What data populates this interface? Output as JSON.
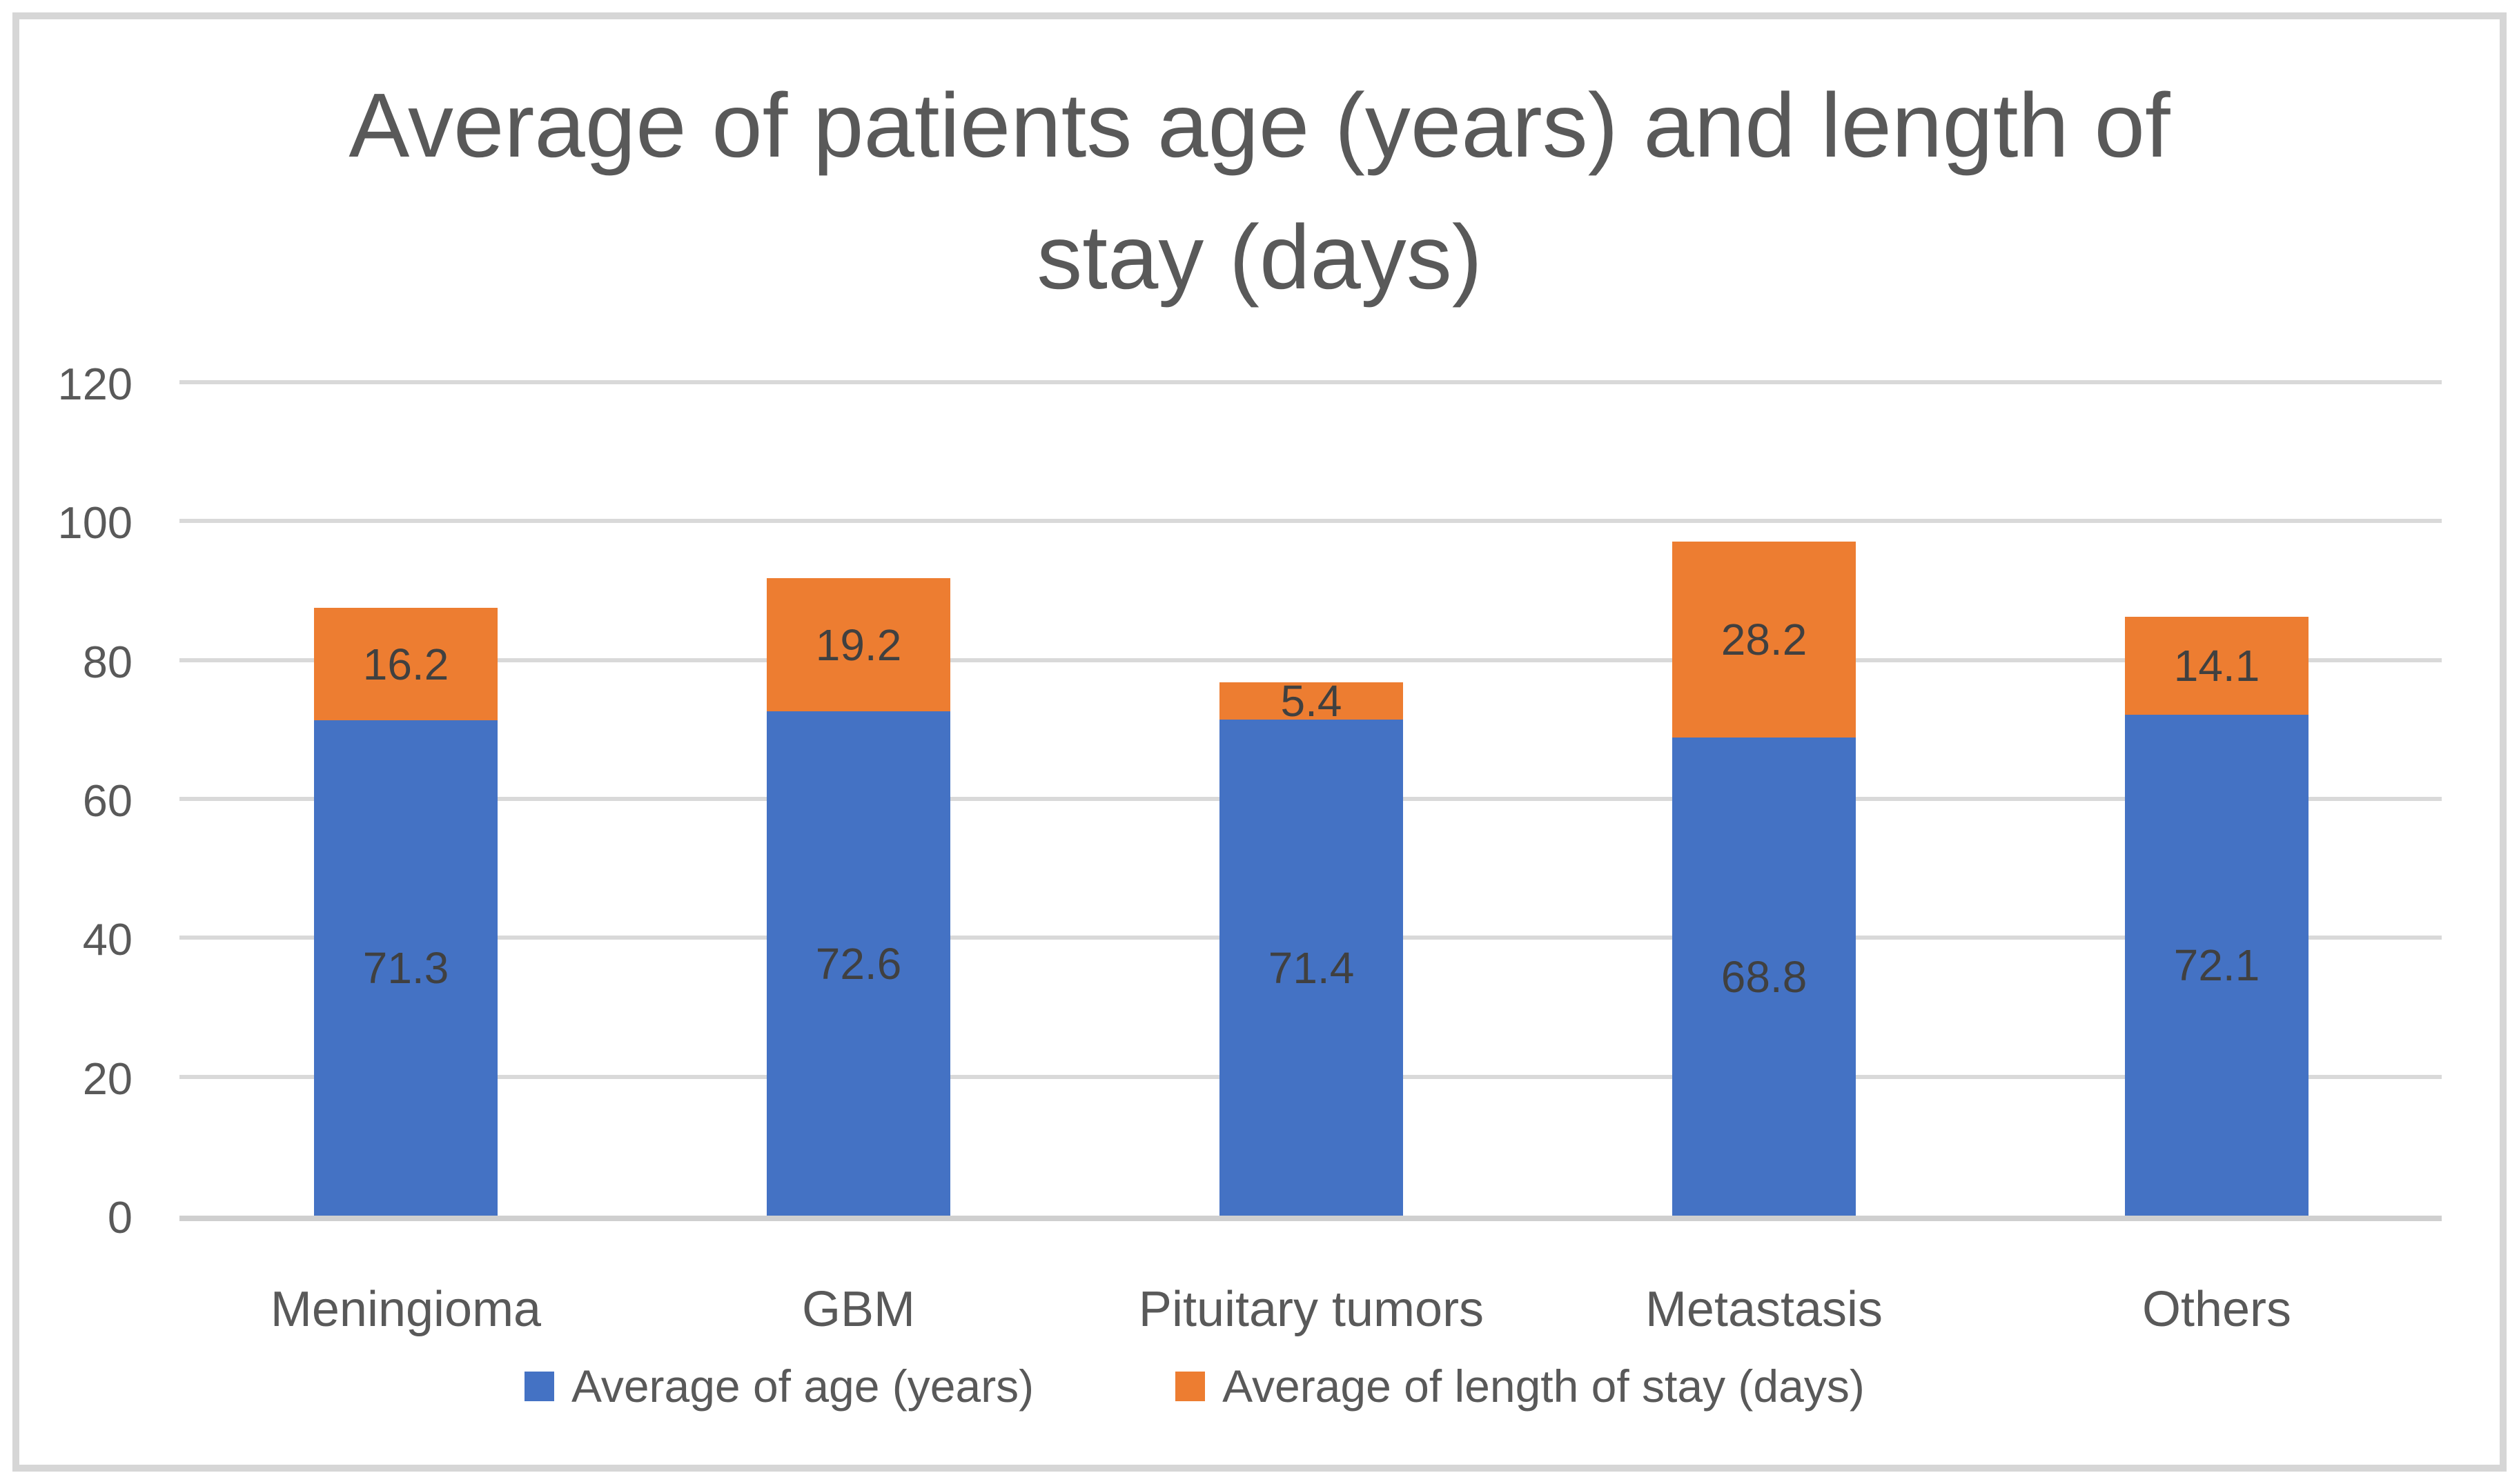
{
  "chart_data": {
    "type": "bar",
    "stacked": true,
    "title": "Average of patients age (years) and length of stay (days)",
    "categories": [
      "Meningioma",
      "GBM",
      "Pituitary tumors",
      "Metastasis",
      "Others"
    ],
    "series": [
      {
        "name": "Average of age (years)",
        "color": "#4472C4",
        "values": [
          71.3,
          72.6,
          71.4,
          68.8,
          72.1
        ]
      },
      {
        "name": "Average of length of stay (days)",
        "color": "#ED7D31",
        "values": [
          16.2,
          19.2,
          5.4,
          28.2,
          14.1
        ]
      }
    ],
    "xlabel": "",
    "ylabel": "",
    "ylim": [
      0,
      120
    ],
    "y_ticks": [
      120,
      100,
      80,
      60,
      40,
      20,
      0
    ],
    "grid": true,
    "legend_position": "bottom",
    "data_labels": "inside-center, one decimal"
  },
  "colors": {
    "series_age": "#4472C4",
    "series_los": "#ED7D31",
    "gridline": "#D9D9D9",
    "axis_line": "#CFCFCF",
    "title_text": "#595959",
    "tick_text": "#595959",
    "category_text": "#595959",
    "legend_text": "#595959",
    "data_label_text": "#404040",
    "frame_border": "#D6D6D6",
    "background": "#FFFFFF"
  }
}
